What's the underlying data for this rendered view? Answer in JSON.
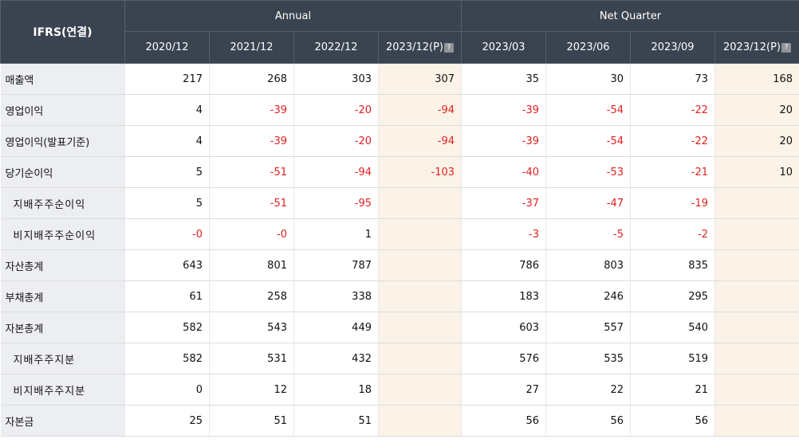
{
  "header": {
    "corner_label": "IFRS(연결)",
    "groups": [
      "Annual",
      "Net Quarter"
    ],
    "periods": [
      "2020/12",
      "2021/12",
      "2022/12",
      "2023/12(P)",
      "2023/03",
      "2023/06",
      "2023/09",
      "2023/12(P)"
    ],
    "info_icon_glyph": "?"
  },
  "rows": [
    {
      "label": "매출액",
      "values": [
        "217",
        "268",
        "303",
        "307",
        "35",
        "30",
        "73",
        "168"
      ]
    },
    {
      "label": "영업이익",
      "values": [
        "4",
        "-39",
        "-20",
        "-94",
        "-39",
        "-54",
        "-22",
        "20"
      ]
    },
    {
      "label": "영업이익(발표기준)",
      "values": [
        "4",
        "-39",
        "-20",
        "-94",
        "-39",
        "-54",
        "-22",
        "20"
      ]
    },
    {
      "label": "당기순이익",
      "values": [
        "5",
        "-51",
        "-94",
        "-103",
        "-40",
        "-53",
        "-21",
        "10"
      ]
    },
    {
      "label": "지배주주순이익",
      "values": [
        "5",
        "-51",
        "-95",
        "",
        "-37",
        "-47",
        "-19",
        ""
      ]
    },
    {
      "label": "비지배주주순이익",
      "values": [
        "-0",
        "-0",
        "1",
        "",
        "-3",
        "-5",
        "-2",
        ""
      ]
    },
    {
      "label": "자산총계",
      "values": [
        "643",
        "801",
        "787",
        "",
        "786",
        "803",
        "835",
        ""
      ]
    },
    {
      "label": "부채총계",
      "values": [
        "61",
        "258",
        "338",
        "",
        "183",
        "246",
        "295",
        ""
      ]
    },
    {
      "label": "자본총계",
      "values": [
        "582",
        "543",
        "449",
        "",
        "603",
        "557",
        "540",
        ""
      ]
    },
    {
      "label": "지배주주지분",
      "values": [
        "582",
        "531",
        "432",
        "",
        "576",
        "535",
        "519",
        ""
      ]
    },
    {
      "label": "비지배주주지분",
      "values": [
        "0",
        "12",
        "18",
        "",
        "27",
        "22",
        "21",
        ""
      ]
    },
    {
      "label": "자본금",
      "values": [
        "25",
        "51",
        "51",
        "",
        "56",
        "56",
        "56",
        ""
      ]
    }
  ],
  "colors": {
    "header_bg": "#3a4350",
    "label_bg": "#eceef2",
    "estimate_bg": "#fbf3e7",
    "negative_text": "#e02020"
  }
}
